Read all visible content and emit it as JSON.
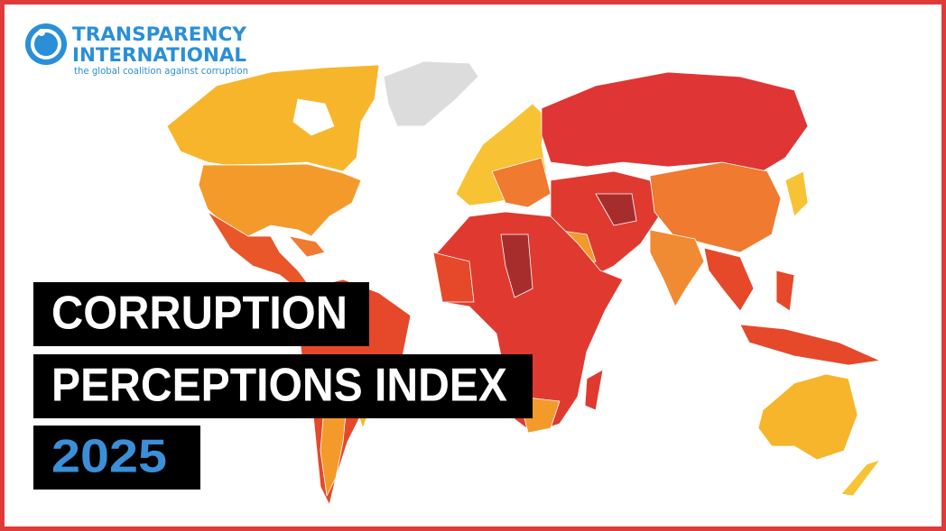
{
  "logo": {
    "name_line1": "TRANSPARENCY",
    "name_line2": "INTERNATIONAL",
    "tagline": "the global coalition against corruption"
  },
  "title": {
    "line1": "CORRUPTION",
    "line2": "PERCEPTIONS INDEX",
    "year": "2025"
  }
}
